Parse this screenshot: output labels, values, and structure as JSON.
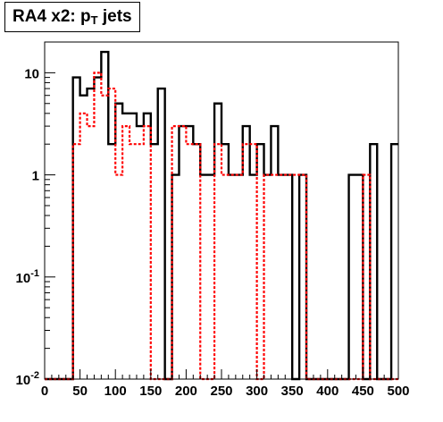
{
  "chart_data": {
    "type": "histogram",
    "title": "RA4 x2: p",
    "title_subscript": "T",
    "title_suffix": " jets",
    "xlim": [
      0,
      500
    ],
    "ylim": [
      0.01,
      20
    ],
    "yscale": "log",
    "bin_width": 10,
    "bin_start": 0,
    "x_ticks": [
      0,
      50,
      100,
      150,
      200,
      250,
      300,
      350,
      400,
      450,
      500
    ],
    "x_tick_labels": [
      "0",
      "50",
      "100",
      "150",
      "200",
      "250",
      "300",
      "350",
      "400",
      "450",
      "500"
    ],
    "y_ticks": [
      0.01,
      0.1,
      1,
      10
    ],
    "y_tick_labels": [
      {
        "base": "10",
        "exp": "-2"
      },
      {
        "base": "10",
        "exp": "-1"
      },
      {
        "base": "1",
        "exp": ""
      },
      {
        "base": "10",
        "exp": ""
      }
    ],
    "grid": false,
    "series": [
      {
        "style": "solid",
        "color": "#000000",
        "values": [
          0,
          0,
          0,
          0,
          9,
          6,
          7,
          9,
          16,
          2,
          5,
          4,
          4,
          3,
          4,
          2,
          7,
          0,
          1,
          3,
          3,
          2,
          1,
          1,
          5,
          2,
          1,
          1,
          3,
          1,
          2,
          1,
          3,
          1,
          1,
          0,
          1,
          0,
          0,
          0,
          0,
          0,
          0,
          1,
          1,
          0,
          2,
          0,
          0,
          2
        ]
      },
      {
        "style": "dashed",
        "color": "#ff0000",
        "values": [
          0,
          0,
          0,
          0,
          2,
          4,
          3,
          10,
          6,
          7,
          1,
          3,
          2,
          2,
          3,
          0,
          0,
          0,
          3,
          3,
          2,
          2,
          0,
          0,
          2,
          1,
          1,
          1,
          2,
          2,
          0,
          1,
          1,
          1,
          1,
          1,
          1,
          0,
          0,
          0,
          0,
          0,
          0,
          0,
          0,
          1,
          0,
          0,
          0,
          0
        ]
      }
    ]
  }
}
